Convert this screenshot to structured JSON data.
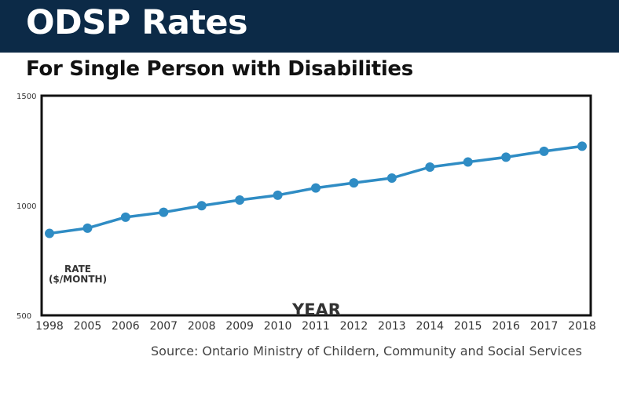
{
  "header": {
    "title": "ODSP Rates",
    "subtitle": "For Single Person with Disabilities"
  },
  "colors": {
    "banner": "#0c2a47",
    "line": "#2f8cc4",
    "point": "#2f8cc4"
  },
  "source": "Source: Ontario Ministry of Childern, Community and Social Services",
  "chart_data": {
    "type": "line",
    "title": "ODSP Rates",
    "subtitle": "For Single Person with Disabilities",
    "xlabel": "YEAR",
    "ylabel": "RATE ($/MONTH)",
    "ylabel_lines": [
      "RATE",
      "($/MONTH)"
    ],
    "ylim": [
      500,
      1500
    ],
    "yticks": [
      500,
      1000,
      1500
    ],
    "categories": [
      "1998",
      "2005",
      "2006",
      "2007",
      "2008",
      "2009",
      "2010",
      "2011",
      "2012",
      "2013",
      "2014",
      "2015",
      "2016",
      "2017",
      "2018"
    ],
    "series": [
      {
        "values": [
          873,
          897,
          947,
          969,
          999,
          1025,
          1047,
          1080,
          1103,
          1125,
          1175,
          1198,
          1220,
          1247,
          1270
        ]
      }
    ],
    "grid": false,
    "legend": "none"
  }
}
